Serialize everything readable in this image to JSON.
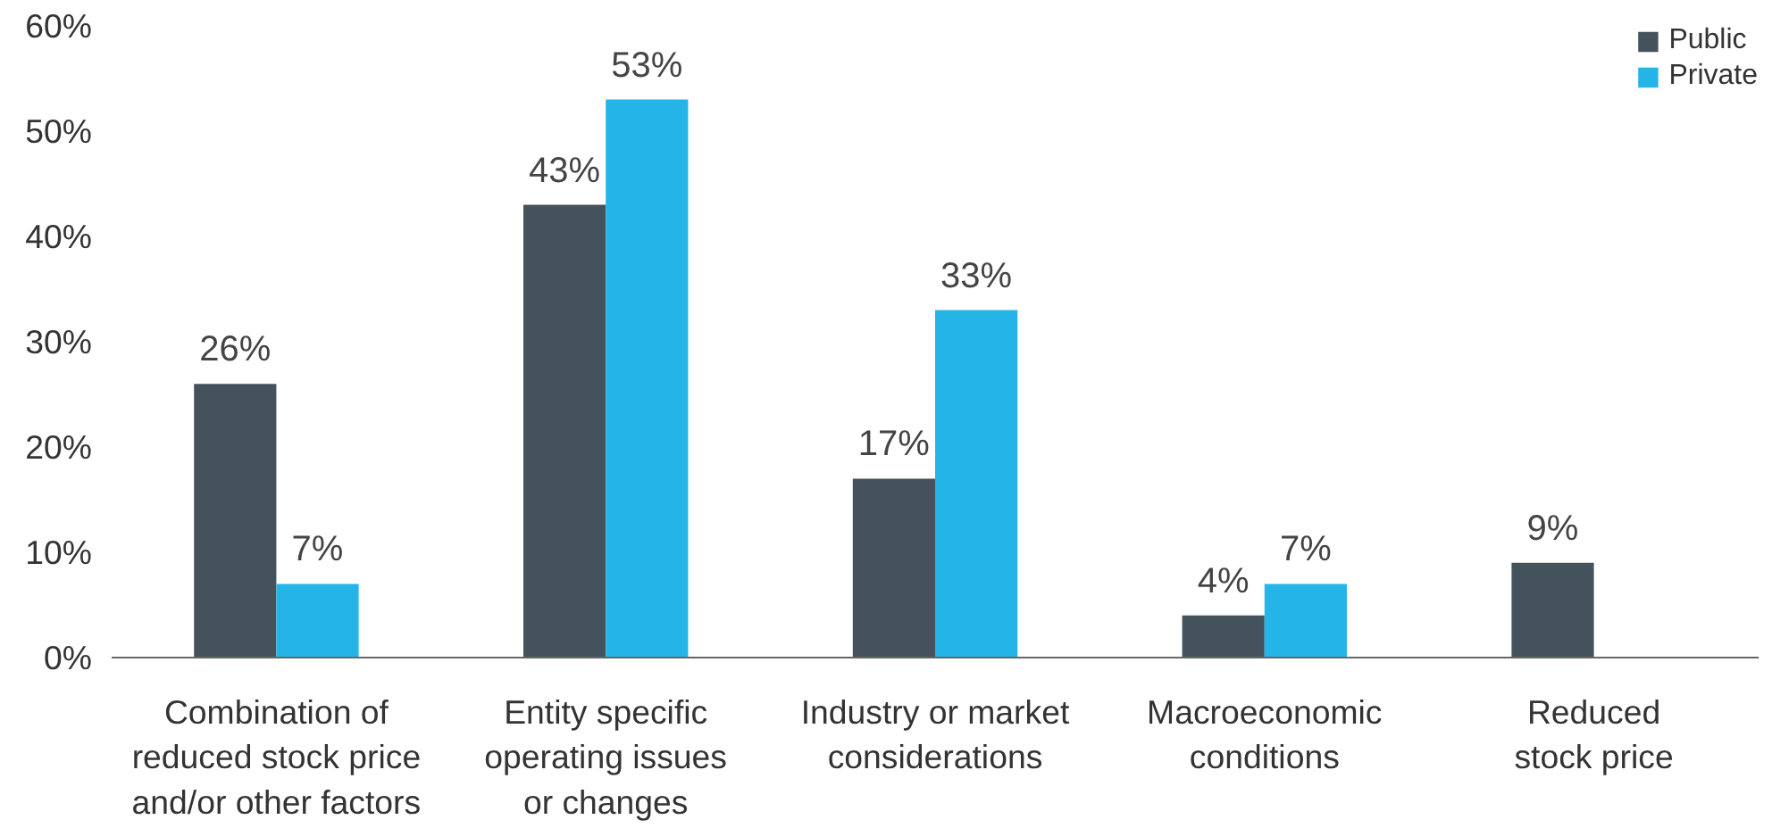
{
  "chart_data": {
    "type": "bar",
    "categories": [
      "Combination of\nreduced stock price\nand/or other factors",
      "Entity specific\noperating issues\nor changes",
      "Industry or market\nconsiderations",
      "Macroeconomic\nconditions",
      "Reduced\nstock price"
    ],
    "series": [
      {
        "name": "Public",
        "color": "#44525c",
        "values": [
          26,
          43,
          17,
          4,
          9
        ],
        "value_labels": [
          "26%",
          "43%",
          "17%",
          "4%",
          "9%"
        ]
      },
      {
        "name": "Private",
        "color": "#24b4e8",
        "values": [
          7,
          53,
          33,
          7,
          null
        ],
        "value_labels": [
          "7%",
          "53%",
          "33%",
          "7%",
          null
        ]
      }
    ],
    "ylim": [
      0,
      60
    ],
    "yticks": [
      {
        "value": 0,
        "label": "0%"
      },
      {
        "value": 10,
        "label": "10%"
      },
      {
        "value": 20,
        "label": "20%"
      },
      {
        "value": 30,
        "label": "30%"
      },
      {
        "value": 40,
        "label": "40%"
      },
      {
        "value": 50,
        "label": "50%"
      },
      {
        "value": 60,
        "label": "60%"
      }
    ],
    "grid": false,
    "legend": "top right"
  }
}
